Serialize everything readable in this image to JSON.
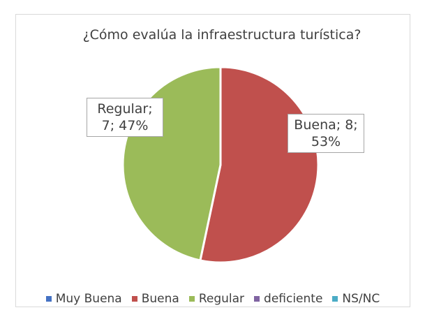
{
  "chart_data": {
    "type": "pie",
    "title": "¿Cómo evalúa la infraestructura turística?",
    "categories": [
      "Muy Buena",
      "Buena",
      "Regular",
      "deficiente",
      "NS/NC"
    ],
    "values": [
      0,
      8,
      7,
      0,
      0
    ],
    "value_labels": [
      null,
      "Buena; 8; 53%",
      "Regular; 7; 47%",
      null,
      null
    ],
    "colors": [
      "#4472c4",
      "#c0504d",
      "#9bbb59",
      "#8064a2",
      "#4bacc6"
    ],
    "legend": "bottom"
  }
}
